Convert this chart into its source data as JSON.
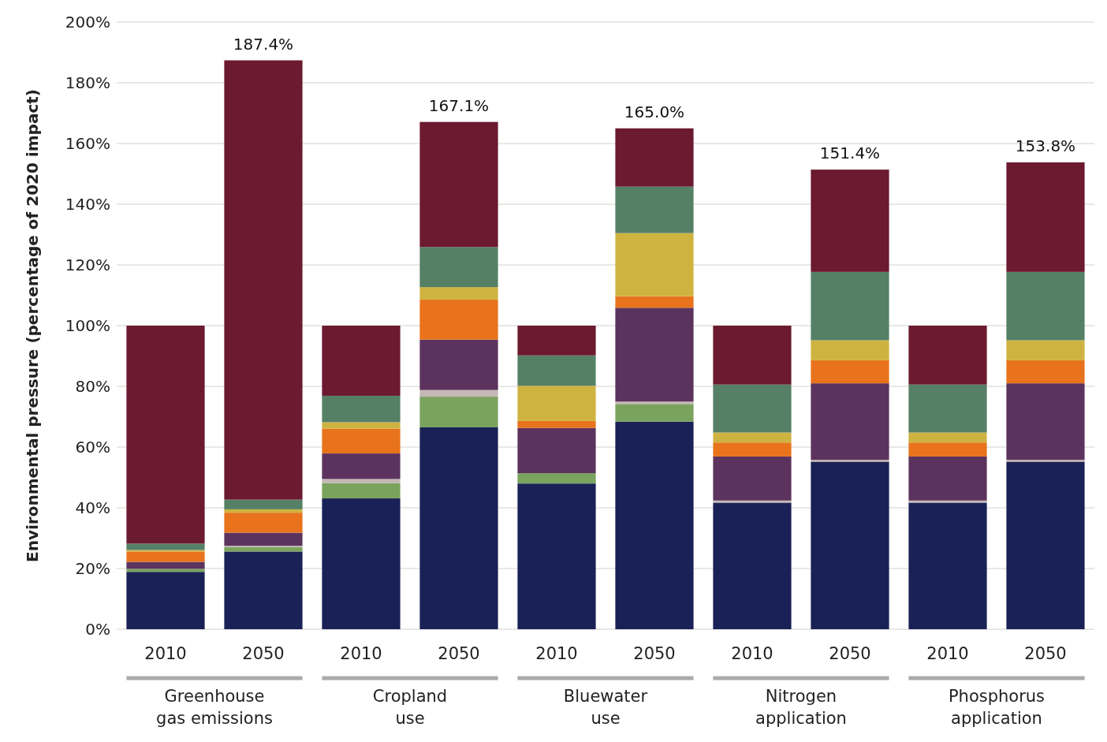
{
  "chart_data": {
    "type": "bar",
    "stacked": true,
    "ylabel": "Environmental pressure (percentage of 2020 impact)",
    "categories": [
      "2010",
      "2050",
      "2010",
      "2050",
      "2010",
      "2050",
      "2010",
      "2050",
      "2010",
      "2050"
    ],
    "series": [
      {
        "color": "#1a2156",
        "values": [
          18.9,
          25.6,
          43.1,
          66.5,
          48.0,
          68.4,
          41.7,
          55.2,
          41.7,
          55.2
        ]
      },
      {
        "color": "#7aa35e",
        "values": [
          1.0,
          1.4,
          5.0,
          10.1,
          3.4,
          5.8,
          0,
          0,
          0,
          0
        ]
      },
      {
        "color": "#c4b8b4",
        "values": [
          null,
          0.5,
          1.4,
          2.2,
          null,
          0.8,
          0.7,
          0.6,
          0.7,
          0.6
        ]
      },
      {
        "color": "#5c335e",
        "values": [
          2.3,
          4.3,
          8.4,
          16.6,
          14.9,
          30.9,
          14.5,
          25.2,
          14.5,
          25.2
        ]
      },
      {
        "color": "#e8731c",
        "values": [
          3.4,
          6.6,
          8.2,
          13.2,
          2.3,
          3.8,
          4.6,
          7.6,
          4.6,
          7.6
        ]
      },
      {
        "color": "#cfb340",
        "values": [
          0.5,
          1.1,
          2.1,
          4.1,
          11.6,
          20.8,
          3.3,
          6.6,
          3.3,
          6.6
        ]
      },
      {
        "color": "#558066",
        "values": [
          2.1,
          3.2,
          8.7,
          13.2,
          10.0,
          15.3,
          15.8,
          22.5,
          15.8,
          22.5
        ]
      },
      {
        "color": "#6b1a30",
        "values": [
          71.8,
          144.7,
          23.1,
          41.2,
          9.8,
          19.2,
          19.4,
          33.7,
          19.4,
          36.1
        ]
      }
    ],
    "totals": [
      null,
      "187.4%",
      null,
      "167.1%",
      null,
      "165.0%",
      null,
      "151.4%",
      null,
      "153.8%"
    ],
    "annotations": [
      "Greenhouse gas emissions",
      "Cropland use",
      "Bluewater use",
      "Nitrogen application",
      "Phosphorus application"
    ],
    "ylim": [
      0,
      200
    ],
    "yticks": [
      {
        "value": 0,
        "label": "0%"
      },
      {
        "value": 20,
        "label": "20%"
      },
      {
        "value": 40,
        "label": "40%"
      },
      {
        "value": 60,
        "label": "60%"
      },
      {
        "value": 80,
        "label": "80%"
      },
      {
        "value": 100,
        "label": "100%"
      },
      {
        "value": 120,
        "label": "120%"
      },
      {
        "value": 140,
        "label": "140%"
      },
      {
        "value": 160,
        "label": "160%"
      },
      {
        "value": 180,
        "label": "180%"
      },
      {
        "value": 200,
        "label": "200%"
      }
    ],
    "grid": "y"
  }
}
